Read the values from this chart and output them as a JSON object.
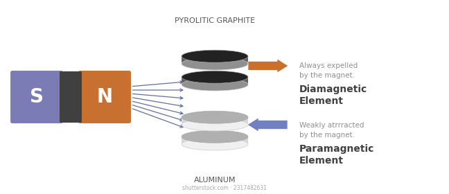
{
  "bg_color": "#ffffff",
  "magnet_s_color": "#7b7bb5",
  "magnet_n_color": "#c87030",
  "magnet_mid_color": "#404040",
  "magnet_s_label": "S",
  "magnet_n_label": "N",
  "field_line_color": "#6070a0",
  "aluminum_label": "ALUMINUM",
  "graphite_label": "PYROLITIC GRAPHITE",
  "para_title": "Paramagnetic\nElement",
  "para_sub": "Weakly atrrracted\nby the magnet.",
  "dia_title": "Diamagnetic\nElement",
  "dia_sub": "Always expelled\nby the magnet.",
  "para_arrow_color": "#7080c0",
  "dia_arrow_color": "#c87030",
  "text_title_color": "#404040",
  "text_sub_color": "#909090",
  "watermark": "shutterstock.com · 2317482631",
  "al_disc_top": "#f0f0f0",
  "al_disc_mid": "#d8d8d8",
  "al_disc_bot": "#b0b0b0",
  "gr_disc_top": "#909090",
  "gr_disc_mid": "#606060",
  "gr_disc_bot": "#222222"
}
